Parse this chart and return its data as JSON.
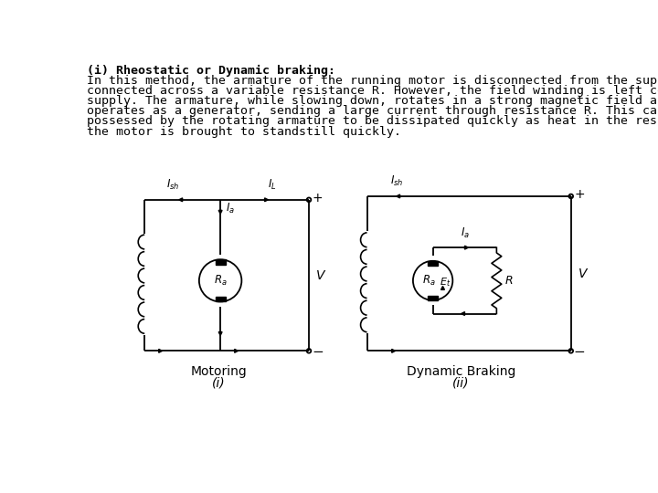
{
  "title_bold": "(i) Rheostatic or Dynamic braking:",
  "body_text": "In this method, the armature of the running motor is disconnected from the supply and is\nconnected across a variable resistance R. However, the field winding is left connected to the\nsupply. The armature, while slowing down, rotates in a strong magnetic field and, therefore,\noperates as a generator, sending a large current through resistance R. This causes the energy\npossessed by the rotating armature to be dissipated quickly as heat in the resistance. As a result,\nthe motor is brought to standstill quickly.",
  "diagram1_label": "Motoring",
  "diagram1_sublabel": "(i)",
  "diagram2_label": "Dynamic Braking",
  "diagram2_sublabel": "(ii)",
  "bg_color": "#ffffff",
  "line_color": "#000000",
  "text_color": "#000000",
  "font_size_body": 9.5,
  "font_size_label": 10,
  "font_size_sublabel": 10
}
